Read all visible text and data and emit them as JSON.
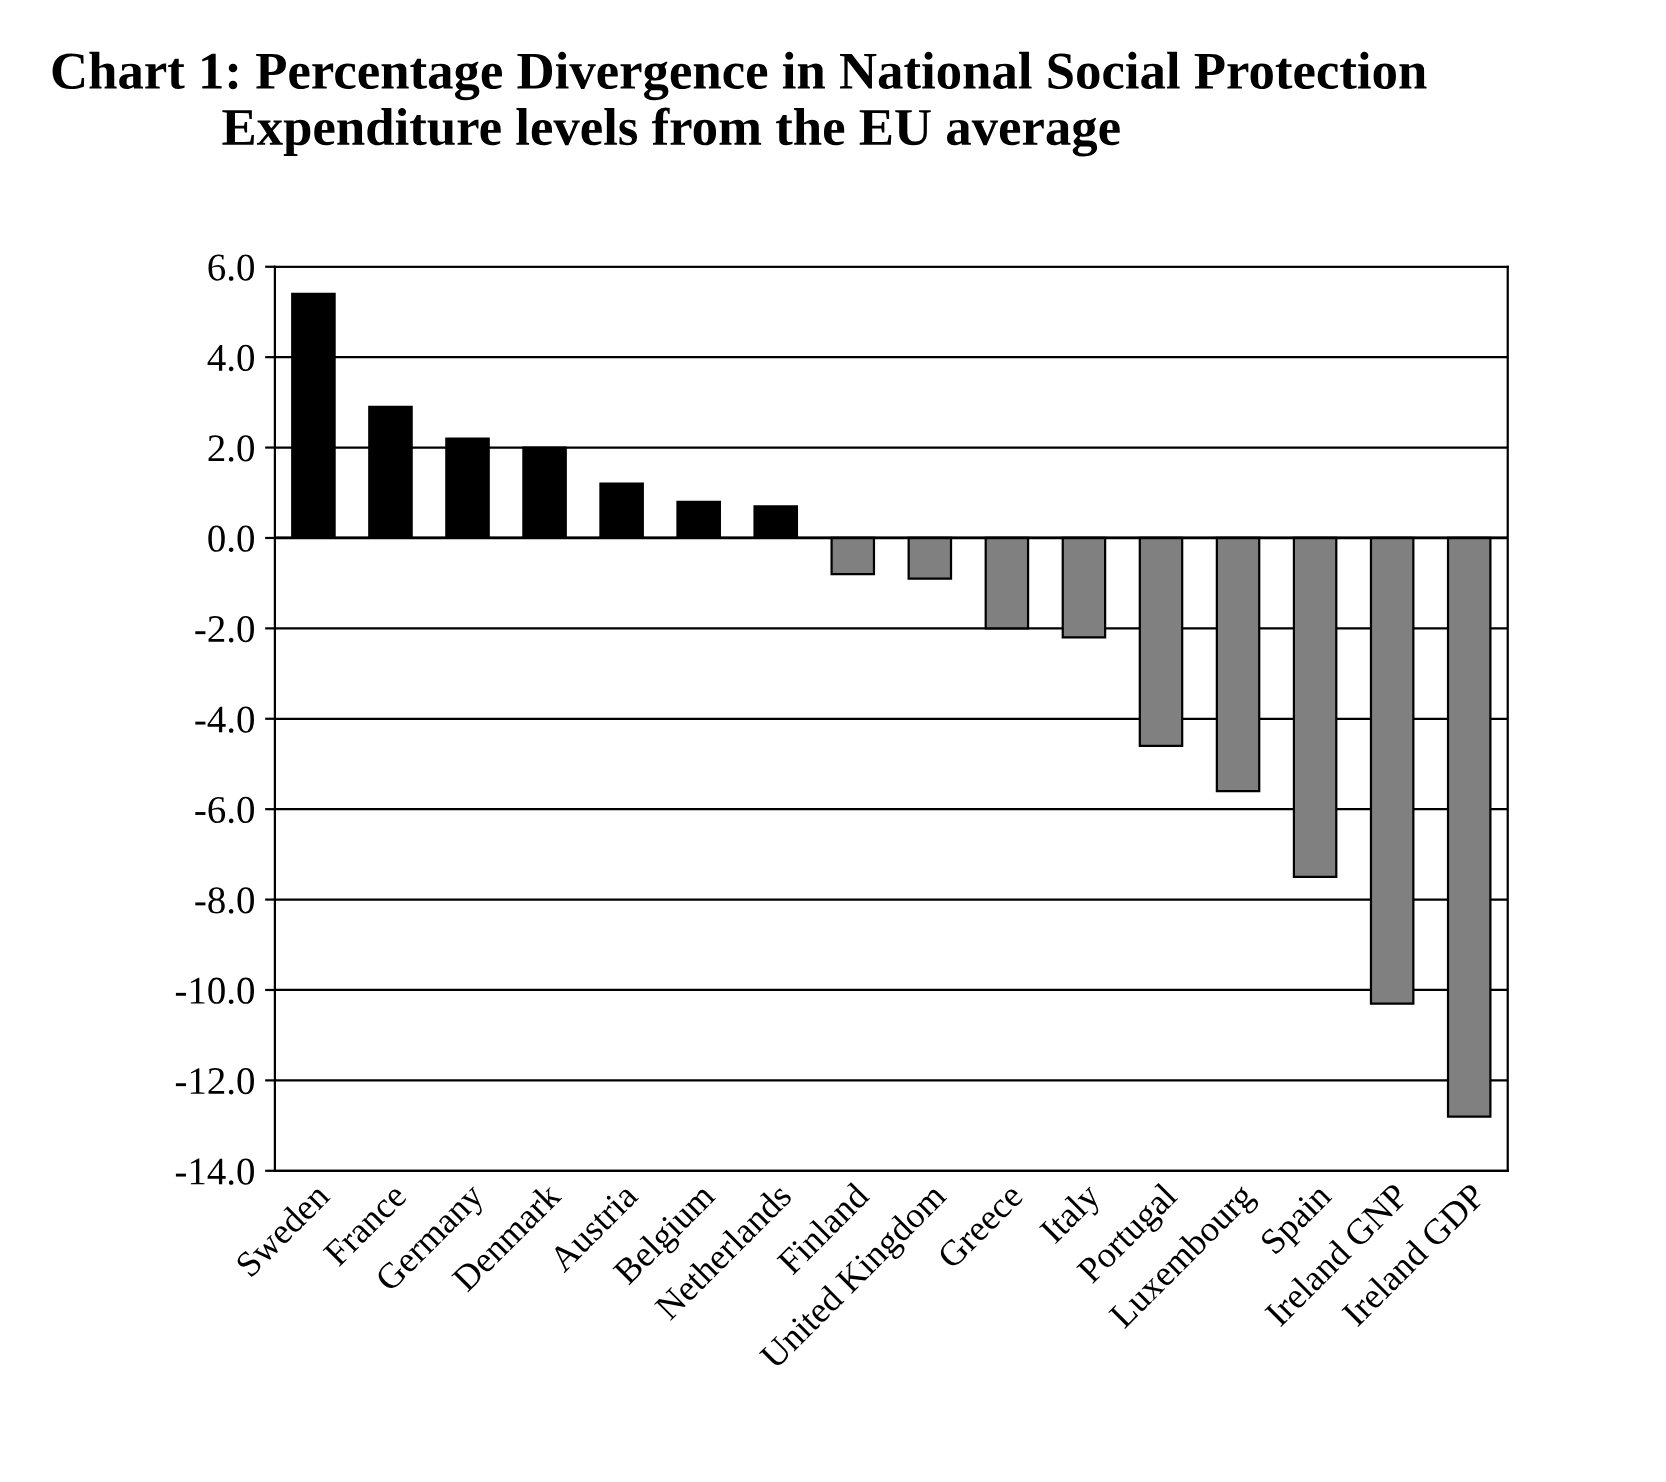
{
  "chart_data": {
    "type": "bar",
    "title": "Chart 1: Percentage Divergence in National Social Protection\n             Expenditure levels from the EU average",
    "categories": [
      "Sweden",
      "France",
      "Germany",
      "Denmark",
      "Austria",
      "Belgium",
      "Netherlands",
      "Finland",
      "United Kingdom",
      "Greece",
      "Italy",
      "Portugal",
      "Luxembourg",
      "Spain",
      "Ireland GNP",
      "Ireland GDP"
    ],
    "values": [
      5.4,
      2.9,
      2.2,
      2.0,
      1.2,
      0.8,
      0.7,
      -0.8,
      -0.9,
      -2.0,
      -2.2,
      -4.6,
      -5.6,
      -7.5,
      -10.3,
      -12.8
    ],
    "colors": [
      "#000000",
      "#000000",
      "#000000",
      "#000000",
      "#000000",
      "#000000",
      "#000000",
      "#808080",
      "#808080",
      "#808080",
      "#808080",
      "#808080",
      "#808080",
      "#808080",
      "#808080",
      "#808080"
    ],
    "ylim": [
      -14,
      6
    ],
    "yticks": [
      {
        "value": -14,
        "label": "-14.0"
      },
      {
        "value": -12,
        "label": "-12.0"
      },
      {
        "value": -10,
        "label": "-10.0"
      },
      {
        "value": -8,
        "label": "-8.0"
      },
      {
        "value": -6,
        "label": "-6.0"
      },
      {
        "value": -4,
        "label": "-4.0"
      },
      {
        "value": -2,
        "label": "-2.0"
      },
      {
        "value": 0,
        "label": "0.0"
      },
      {
        "value": 2,
        "label": "2.0"
      },
      {
        "value": 4,
        "label": "4.0"
      },
      {
        "value": 6,
        "label": "6.0"
      }
    ],
    "grid": "y",
    "legend": false
  }
}
